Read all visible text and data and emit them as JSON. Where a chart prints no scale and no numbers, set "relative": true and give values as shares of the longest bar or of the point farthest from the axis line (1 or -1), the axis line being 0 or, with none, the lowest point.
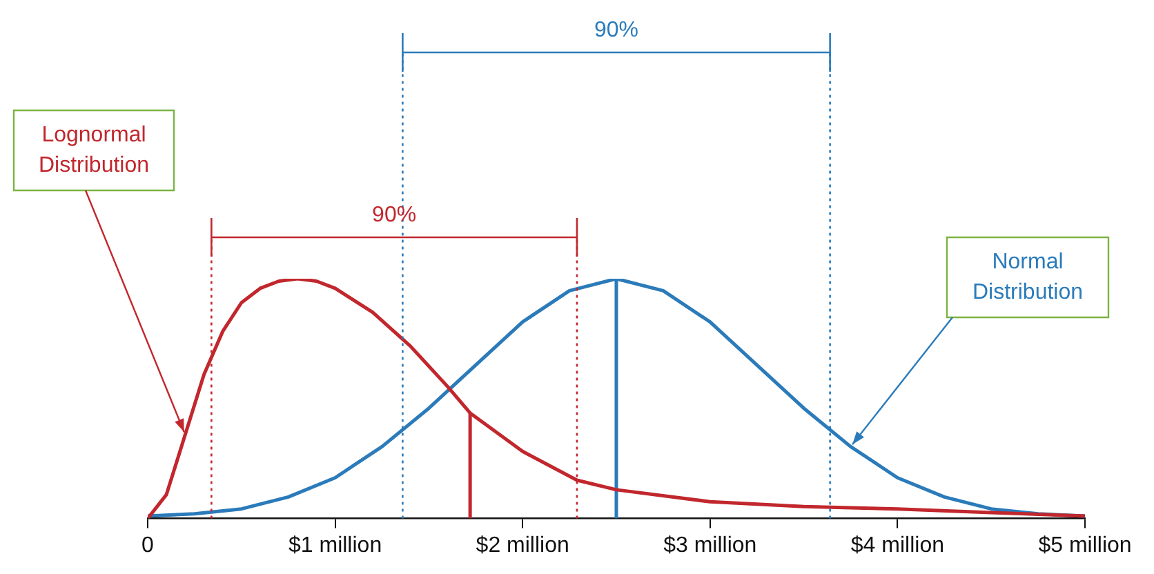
{
  "chart_data": {
    "type": "line",
    "relative": true,
    "xlim": [
      0,
      5
    ],
    "xticks": [
      0,
      {
        "value": 1,
        "label": "$1 million"
      },
      {
        "value": 2,
        "label": "$2 million"
      },
      {
        "value": 3,
        "label": "$3 million"
      },
      {
        "value": 4,
        "label": "$4 million"
      },
      {
        "value": 5,
        "label": "$5 million"
      }
    ],
    "legend": false,
    "grid": false,
    "marker": "none",
    "line_style": "solid",
    "series": [
      {
        "name": "Lognormal Distribution",
        "color": "#c1272d",
        "x": [
          0,
          0.1,
          0.2,
          0.3,
          0.4,
          0.5,
          0.6,
          0.7,
          0.8,
          0.9,
          1.0,
          1.2,
          1.4,
          1.6,
          1.72,
          2.0,
          2.29,
          2.5,
          3.0,
          3.5,
          4.0,
          4.5,
          5.0
        ],
        "values": [
          0,
          0.1,
          0.35,
          0.6,
          0.78,
          0.9,
          0.96,
          0.99,
          1,
          0.99,
          0.96,
          0.86,
          0.72,
          0.55,
          0.44,
          0.28,
          0.16,
          0.12,
          0.07,
          0.05,
          0.04,
          0.025,
          0.01
        ]
      },
      {
        "name": "Normal Distribution",
        "color": "#2b7bba",
        "x": [
          0,
          0.25,
          0.5,
          0.75,
          1,
          1.25,
          1.5,
          1.75,
          2,
          2.25,
          2.5,
          2.75,
          3,
          3.25,
          3.5,
          3.75,
          4,
          4.25,
          4.5,
          4.75,
          5
        ],
        "values": [
          0.01,
          0.02,
          0.04,
          0.09,
          0.17,
          0.3,
          0.46,
          0.64,
          0.82,
          0.95,
          1,
          0.95,
          0.82,
          0.64,
          0.46,
          0.3,
          0.17,
          0.09,
          0.04,
          0.02,
          0.01
        ]
      },
      {
        "type": "line",
        "color": "#c1272d",
        "x": [
          1.72,
          1.72
        ],
        "values": [
          0,
          0.44
        ]
      },
      {
        "type": "line",
        "color": "#2b7bba",
        "x": [
          2.5,
          2.5
        ],
        "values": [
          0,
          1
        ]
      }
    ],
    "ref_lines": [
      {
        "axis": "x",
        "value": 0.34,
        "color": "#c1272d",
        "line_style": "dotted"
      },
      {
        "axis": "x",
        "value": 2.29,
        "color": "#c1272d",
        "line_style": "dotted"
      },
      {
        "axis": "x",
        "value": 1.36,
        "color": "#2b7bba",
        "line_style": "dotted"
      },
      {
        "axis": "x",
        "value": 3.64,
        "color": "#2b7bba",
        "line_style": "dotted"
      }
    ],
    "annotations": [
      "90%",
      "90%"
    ]
  }
}
